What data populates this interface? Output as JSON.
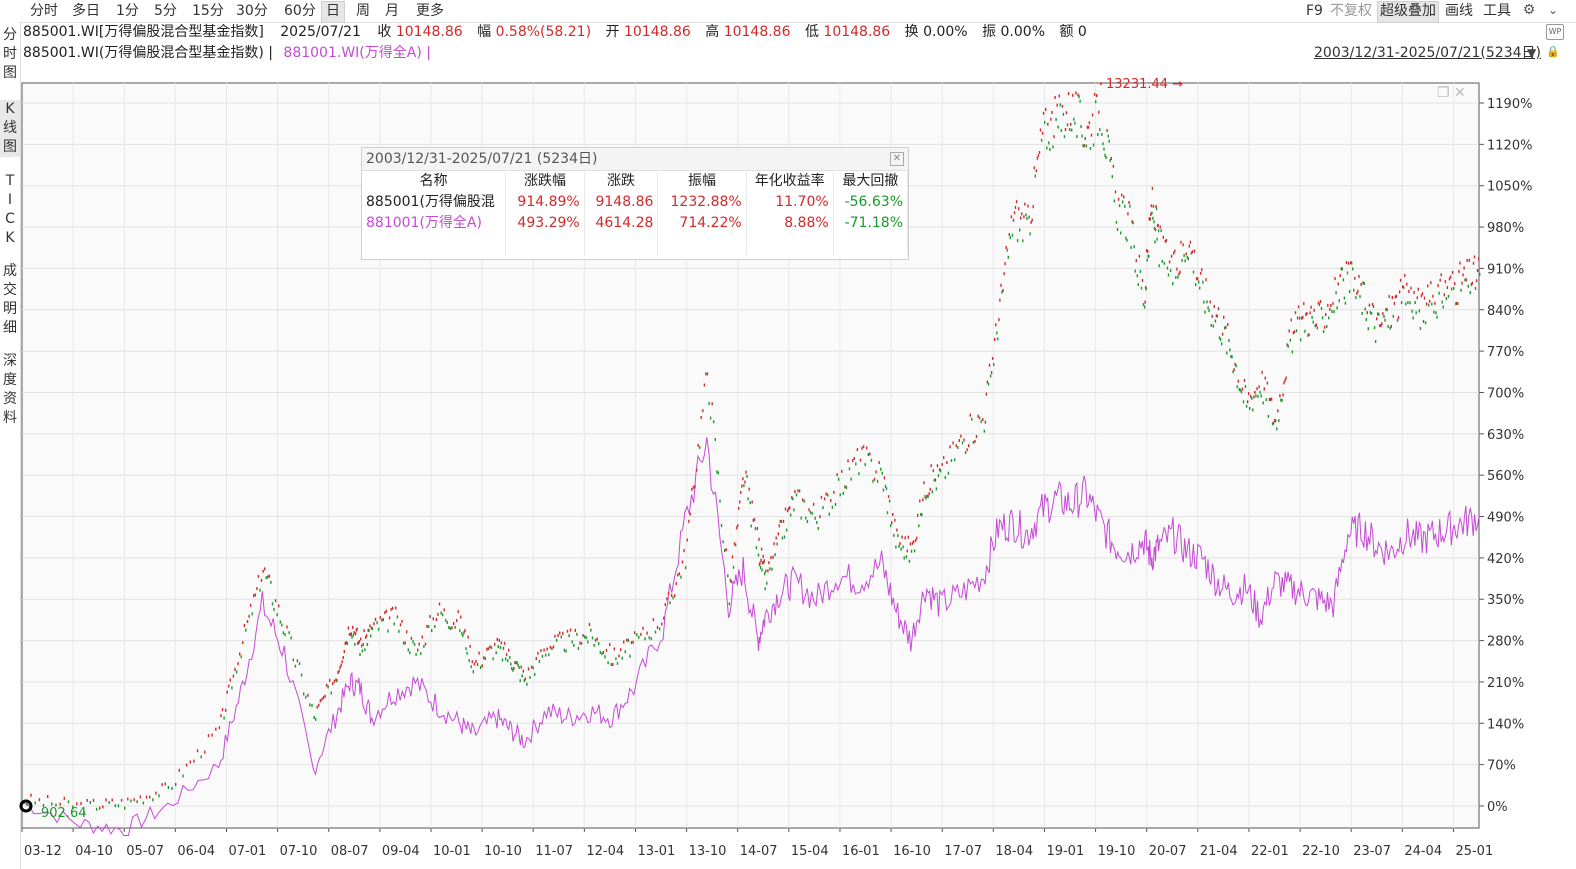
{
  "toolbar": {
    "periods": [
      {
        "label": "分时",
        "active": false
      },
      {
        "label": "多日",
        "active": false
      },
      {
        "label": "1分",
        "active": false
      },
      {
        "label": "5分",
        "active": false
      },
      {
        "label": "15分",
        "active": false
      },
      {
        "label": "30分",
        "active": false
      },
      {
        "label": "60分",
        "active": false
      },
      {
        "label": "日",
        "active": true
      },
      {
        "label": "周",
        "active": false
      },
      {
        "label": "月",
        "active": false
      },
      {
        "label": "更多",
        "active": false
      }
    ],
    "right": {
      "f9": "F9",
      "no_adjust": "不复权",
      "overlay": "超级叠加",
      "draw": "画线",
      "tools": "工具"
    }
  },
  "sidebar": {
    "tabs": [
      {
        "label": "分时图"
      },
      {
        "label": "K线图"
      },
      {
        "label": "TICK"
      },
      {
        "label": "成交明细"
      },
      {
        "label": "深度资料"
      }
    ]
  },
  "quote": {
    "name": "885001.WI[万得偏股混合型基金指数]",
    "date": "2025/07/21",
    "close_label": "收",
    "close": "10148.86",
    "change_label": "幅",
    "change": "0.58%(58.21)",
    "open_label": "开",
    "open": "10148.86",
    "high_label": "高",
    "high": "10148.86",
    "low_label": "低",
    "low": "10148.86",
    "turnover_label": "换",
    "turnover": "0.00%",
    "amplitude_label": "振",
    "amplitude": "0.00%",
    "amount_label": "额",
    "amount": "0"
  },
  "legend": {
    "main": "885001.WI(万得偏股混合型基金指数) |",
    "overlay": "881001.WI(万得全A) |"
  },
  "range": {
    "label": "2003/12/31-2025/07/21(5234日)"
  },
  "stats": {
    "title": "2003/12/31-2025/07/21 (5234日)",
    "headers": [
      "名称",
      "涨跌幅",
      "涨跌",
      "振幅",
      "年化收益率",
      "最大回撤"
    ],
    "rows": [
      {
        "name": "885001(万得偏股混",
        "chg_pct": "914.89%",
        "chg": "9148.86",
        "amp": "1232.88%",
        "annual": "11.70%",
        "mdd": "-56.63%"
      },
      {
        "name": "881001(万得全A)",
        "chg_pct": "493.29%",
        "chg": "4614.28",
        "amp": "714.22%",
        "annual": "8.88%",
        "mdd": "-71.18%"
      }
    ]
  },
  "chart_data": {
    "type": "line",
    "y_ticks": [
      "1190%",
      "1120%",
      "1050%",
      "980%",
      "910%",
      "840%",
      "770%",
      "700%",
      "630%",
      "560%",
      "490%",
      "420%",
      "350%",
      "280%",
      "210%",
      "140%",
      "70%",
      "0%"
    ],
    "x_ticks": [
      "03-12",
      "04-10",
      "05-07",
      "06-04",
      "07-01",
      "07-10",
      "08-07",
      "09-04",
      "10-01",
      "10-10",
      "11-07",
      "12-04",
      "13-01",
      "13-10",
      "14-07",
      "15-04",
      "16-01",
      "16-10",
      "17-07",
      "18-04",
      "19-01",
      "19-10",
      "20-07",
      "21-04",
      "22-01",
      "22-10",
      "23-07",
      "24-04",
      "25-01"
    ],
    "ylim": [
      0,
      1190
    ],
    "annotations": {
      "max": "13231.44",
      "min": "902.64"
    },
    "colors": {
      "main_up": "#d22a2a",
      "main_down": "#1a9a2a",
      "overlay": "#c54ad6"
    },
    "series": [
      {
        "x": [
          0,
          0.04,
          0.07,
          0.1,
          0.135,
          0.15,
          0.165,
          0.18,
          0.2,
          0.215,
          0.225,
          0.232,
          0.24,
          0.255,
          0.27,
          0.285,
          0.3,
          0.31,
          0.325,
          0.335,
          0.345,
          0.36,
          0.375,
          0.39,
          0.405,
          0.42,
          0.44,
          0.455,
          0.47,
          0.485,
          0.495,
          0.505,
          0.51,
          0.52,
          0.53,
          0.545,
          0.56,
          0.575,
          0.59,
          0.6,
          0.61,
          0.62,
          0.63,
          0.645,
          0.66,
          0.67,
          0.68,
          0.69,
          0.7,
          0.71,
          0.72,
          0.73,
          0.74,
          0.75,
          0.76,
          0.77,
          0.775,
          0.78,
          0.79,
          0.8,
          0.81,
          0.82,
          0.83,
          0.84,
          0.85,
          0.86,
          0.87,
          0.88,
          0.89,
          0.9,
          0.91,
          0.92,
          0.93,
          0.94,
          0.95,
          0.96,
          0.97,
          0.98,
          0.99,
          1.0
        ],
        "values": [
          10,
          0,
          5,
          30,
          130,
          270,
          400,
          300,
          150,
          220,
          310,
          270,
          300,
          320,
          260,
          330,
          310,
          240,
          270,
          250,
          215,
          270,
          280,
          290,
          250,
          275,
          320,
          425,
          740,
          360,
          560,
          440,
          380,
          460,
          520,
          490,
          540,
          590,
          560,
          450,
          430,
          545,
          560,
          620,
          660,
          830,
          1000,
          980,
          1140,
          1160,
          1180,
          1140,
          1180,
          1020,
          980,
          860,
          1020,
          950,
          900,
          960,
          870,
          830,
          770,
          680,
          720,
          650,
          790,
          830,
          820,
          860,
          890,
          860,
          810,
          840,
          870,
          840,
          860,
          880,
          890,
          900
        ],
        "name": "885001"
      },
      {
        "x": [
          0,
          0.04,
          0.07,
          0.1,
          0.135,
          0.15,
          0.165,
          0.18,
          0.2,
          0.215,
          0.225,
          0.232,
          0.24,
          0.255,
          0.27,
          0.285,
          0.3,
          0.31,
          0.325,
          0.335,
          0.345,
          0.36,
          0.375,
          0.39,
          0.405,
          0.42,
          0.44,
          0.455,
          0.47,
          0.485,
          0.495,
          0.505,
          0.51,
          0.52,
          0.53,
          0.545,
          0.56,
          0.575,
          0.59,
          0.6,
          0.61,
          0.62,
          0.63,
          0.645,
          0.66,
          0.67,
          0.68,
          0.69,
          0.7,
          0.71,
          0.72,
          0.73,
          0.74,
          0.75,
          0.76,
          0.77,
          0.775,
          0.78,
          0.79,
          0.8,
          0.81,
          0.82,
          0.83,
          0.84,
          0.85,
          0.86,
          0.87,
          0.88,
          0.89,
          0.9,
          0.91,
          0.92,
          0.93,
          0.94,
          0.95,
          0.96,
          0.97,
          0.98,
          0.99,
          1.0
        ],
        "values": [
          5,
          -30,
          -40,
          0,
          70,
          190,
          340,
          260,
          60,
          150,
          210,
          200,
          150,
          190,
          210,
          170,
          140,
          120,
          150,
          130,
          110,
          160,
          150,
          160,
          150,
          200,
          300,
          480,
          620,
          340,
          400,
          280,
          320,
          360,
          380,
          350,
          390,
          380,
          410,
          330,
          280,
          370,
          340,
          360,
          390,
          470,
          480,
          460,
          500,
          520,
          510,
          530,
          480,
          440,
          430,
          450,
          420,
          440,
          460,
          430,
          420,
          380,
          360,
          370,
          320,
          380,
          370,
          360,
          350,
          340,
          460,
          470,
          440,
          430,
          460,
          450,
          460,
          470,
          480,
          490
        ],
        "name": "881001"
      }
    ]
  }
}
